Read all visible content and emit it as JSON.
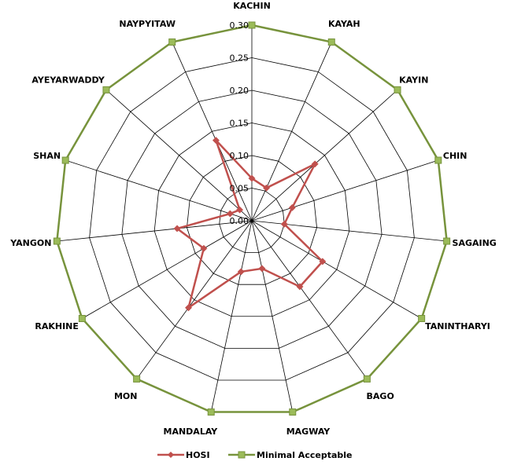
{
  "chart_data": {
    "type": "radar",
    "categories": [
      "KACHIN",
      "KAYAH",
      "KAYIN",
      "CHIN",
      "SAGAING",
      "TANINTHARYI",
      "BAGO",
      "MAGWAY",
      "MANDALAY",
      "MON",
      "RAKHINE",
      "YANGON",
      "SHAN",
      "AYEYARWADDY",
      "NAYPYITAW"
    ],
    "rlim": [
      0,
      0.3
    ],
    "ticks": [
      "0.00",
      "0.05",
      "0.10",
      "0.15",
      "0.20",
      "0.25",
      "0.30"
    ],
    "tick_values": [
      0,
      0.05,
      0.1,
      0.15,
      0.2,
      0.25,
      0.3
    ],
    "grid": true,
    "legend_position": "bottom",
    "series": [
      {
        "name": "HOSI",
        "color": "#c0504d",
        "marker": "diamond",
        "values": [
          0.065,
          0.055,
          0.13,
          0.065,
          0.05,
          0.125,
          0.125,
          0.075,
          0.08,
          0.165,
          0.085,
          0.115,
          0.035,
          0.025,
          0.135
        ]
      },
      {
        "name": "Minimal Acceptable",
        "color": "#77933c",
        "marker": "square",
        "values": [
          0.3,
          0.3,
          0.3,
          0.3,
          0.3,
          0.3,
          0.3,
          0.3,
          0.3,
          0.3,
          0.3,
          0.3,
          0.3,
          0.3,
          0.3
        ]
      }
    ]
  }
}
